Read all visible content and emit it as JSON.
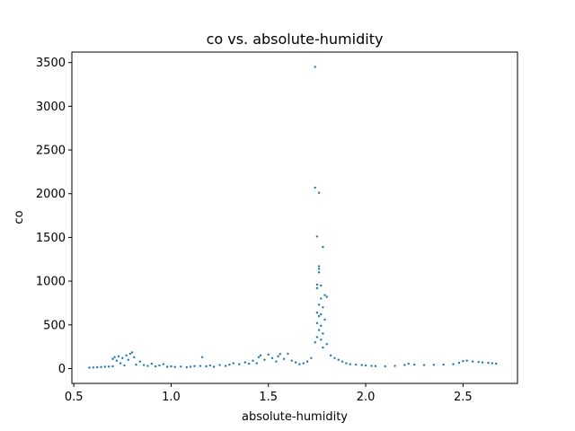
{
  "chart_data": {
    "type": "scatter",
    "title": "co vs. absolute-humidity",
    "xlabel": "absolute-humidity",
    "ylabel": "co",
    "xlim": [
      0.49,
      2.78
    ],
    "ylim": [
      -170,
      3620
    ],
    "xticks": [
      0.5,
      1.0,
      1.5,
      2.0,
      2.5
    ],
    "xtick_labels": [
      "0.5",
      "1.0",
      "1.5",
      "2.0",
      "2.5"
    ],
    "yticks": [
      0,
      500,
      1000,
      1500,
      2000,
      2500,
      3000,
      3500
    ],
    "ytick_labels": [
      "0",
      "500",
      "1000",
      "1500",
      "2000",
      "2500",
      "3000",
      "3500"
    ],
    "grid": false,
    "marker_color": "#1f77b4",
    "series": [
      {
        "points": [
          [
            0.58,
            10
          ],
          [
            0.6,
            12
          ],
          [
            0.62,
            15
          ],
          [
            0.64,
            18
          ],
          [
            0.66,
            20
          ],
          [
            0.68,
            22
          ],
          [
            0.7,
            25
          ],
          [
            0.7,
            110
          ],
          [
            0.71,
            130
          ],
          [
            0.72,
            90
          ],
          [
            0.73,
            140
          ],
          [
            0.74,
            60
          ],
          [
            0.75,
            120
          ],
          [
            0.76,
            35
          ],
          [
            0.77,
            150
          ],
          [
            0.78,
            100
          ],
          [
            0.79,
            170
          ],
          [
            0.8,
            185
          ],
          [
            0.81,
            130
          ],
          [
            0.82,
            45
          ],
          [
            0.84,
            80
          ],
          [
            0.86,
            40
          ],
          [
            0.88,
            30
          ],
          [
            0.9,
            55
          ],
          [
            0.92,
            25
          ],
          [
            0.94,
            35
          ],
          [
            0.96,
            50
          ],
          [
            0.98,
            20
          ],
          [
            1.0,
            25
          ],
          [
            1.02,
            18
          ],
          [
            1.05,
            22
          ],
          [
            1.08,
            15
          ],
          [
            1.1,
            20
          ],
          [
            1.12,
            28
          ],
          [
            1.15,
            30
          ],
          [
            1.16,
            130
          ],
          [
            1.18,
            25
          ],
          [
            1.2,
            35
          ],
          [
            1.22,
            20
          ],
          [
            1.25,
            40
          ],
          [
            1.28,
            30
          ],
          [
            1.3,
            45
          ],
          [
            1.32,
            60
          ],
          [
            1.35,
            50
          ],
          [
            1.38,
            70
          ],
          [
            1.4,
            55
          ],
          [
            1.42,
            90
          ],
          [
            1.44,
            60
          ],
          [
            1.45,
            130
          ],
          [
            1.46,
            150
          ],
          [
            1.48,
            100
          ],
          [
            1.5,
            160
          ],
          [
            1.52,
            120
          ],
          [
            1.54,
            80
          ],
          [
            1.55,
            140
          ],
          [
            1.56,
            165
          ],
          [
            1.58,
            110
          ],
          [
            1.6,
            170
          ],
          [
            1.62,
            90
          ],
          [
            1.64,
            70
          ],
          [
            1.66,
            50
          ],
          [
            1.68,
            60
          ],
          [
            1.7,
            80
          ],
          [
            1.72,
            120
          ],
          [
            1.74,
            300
          ],
          [
            1.74,
            3450
          ],
          [
            1.74,
            2070
          ],
          [
            1.76,
            2010
          ],
          [
            1.75,
            1510
          ],
          [
            1.78,
            1390
          ],
          [
            1.76,
            1170
          ],
          [
            1.76,
            1140
          ],
          [
            1.76,
            1100
          ],
          [
            1.75,
            960
          ],
          [
            1.77,
            950
          ],
          [
            1.75,
            920
          ],
          [
            1.79,
            840
          ],
          [
            1.8,
            820
          ],
          [
            1.77,
            800
          ],
          [
            1.76,
            730
          ],
          [
            1.78,
            700
          ],
          [
            1.75,
            640
          ],
          [
            1.77,
            620
          ],
          [
            1.76,
            600
          ],
          [
            1.79,
            560
          ],
          [
            1.75,
            520
          ],
          [
            1.77,
            490
          ],
          [
            1.76,
            440
          ],
          [
            1.78,
            400
          ],
          [
            1.75,
            360
          ],
          [
            1.77,
            330
          ],
          [
            1.8,
            280
          ],
          [
            1.78,
            240
          ],
          [
            1.82,
            150
          ],
          [
            1.84,
            120
          ],
          [
            1.86,
            100
          ],
          [
            1.88,
            80
          ],
          [
            1.9,
            60
          ],
          [
            1.92,
            50
          ],
          [
            1.95,
            45
          ],
          [
            1.98,
            40
          ],
          [
            2.0,
            35
          ],
          [
            2.03,
            30
          ],
          [
            2.05,
            28
          ],
          [
            2.1,
            25
          ],
          [
            2.15,
            30
          ],
          [
            2.2,
            40
          ],
          [
            2.22,
            55
          ],
          [
            2.25,
            45
          ],
          [
            2.3,
            40
          ],
          [
            2.35,
            42
          ],
          [
            2.4,
            45
          ],
          [
            2.45,
            50
          ],
          [
            2.48,
            65
          ],
          [
            2.5,
            85
          ],
          [
            2.52,
            90
          ],
          [
            2.55,
            80
          ],
          [
            2.58,
            75
          ],
          [
            2.6,
            70
          ],
          [
            2.63,
            65
          ],
          [
            2.65,
            60
          ],
          [
            2.67,
            55
          ]
        ]
      }
    ]
  }
}
